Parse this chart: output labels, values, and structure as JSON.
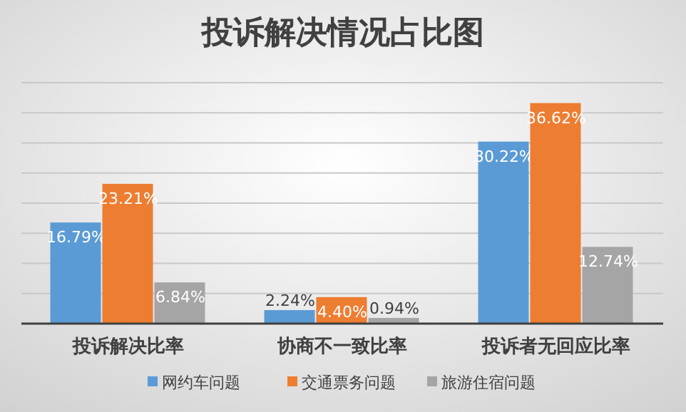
{
  "chart_data": {
    "type": "bar",
    "title": "投诉解决情况占比图",
    "categories": [
      "投诉解决比率",
      "协商不一致比率",
      "投诉者无回应比率"
    ],
    "series": [
      {
        "name": "网约车问题",
        "color": "#5b9bd5",
        "values": [
          16.79,
          2.24,
          30.22
        ],
        "value_labels": [
          "16.79%",
          "2.24%",
          "30.22%"
        ]
      },
      {
        "name": "交通票务问题",
        "color": "#ed7d31",
        "values": [
          23.21,
          4.4,
          36.62
        ],
        "value_labels": [
          "23.21%",
          "4.40%",
          "36.62%"
        ]
      },
      {
        "name": "旅游住宿问题",
        "color": "#a5a5a5",
        "values": [
          6.84,
          0.94,
          12.74
        ],
        "value_labels": [
          "6.84%",
          "0.94%",
          "12.74%"
        ]
      }
    ],
    "tick_labels": "x",
    "grid": "y",
    "legend": "bottom"
  }
}
